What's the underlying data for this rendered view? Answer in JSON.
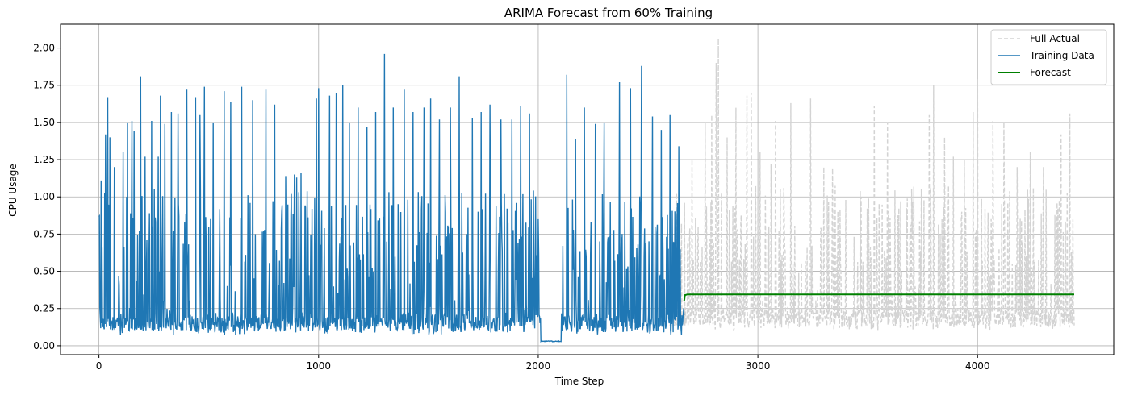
{
  "chart_data": {
    "type": "line",
    "title": "ARIMA Forecast from 60% Training",
    "xlabel": "Time Step",
    "ylabel": "CPU Usage",
    "xlim": [
      -175,
      4620
    ],
    "ylim": [
      -0.06,
      2.16
    ],
    "xticks": [
      0,
      1000,
      2000,
      3000,
      4000
    ],
    "yticks": [
      0.0,
      0.25,
      0.5,
      0.75,
      1.0,
      1.25,
      1.5,
      1.75,
      2.0
    ],
    "xtick_labels": [
      "0",
      "1000",
      "2000",
      "3000",
      "4000"
    ],
    "ytick_labels": [
      "0.00",
      "0.25",
      "0.50",
      "0.75",
      "1.00",
      "1.25",
      "1.50",
      "1.75",
      "2.00"
    ],
    "grid": true,
    "legend_position": "top-right",
    "series_style": {
      "full_actual": {
        "color": "#d3d3d3",
        "dash": "dashed"
      },
      "training": {
        "color": "#1f77b4",
        "dash": "solid"
      },
      "forecast": {
        "color": "#008000",
        "dash": "solid"
      }
    },
    "series": [
      {
        "name": "Full Actual",
        "key": "full_actual",
        "x_range": [
          0,
          4440
        ],
        "baseline": 0.12,
        "peaks": [
          [
            2700,
            1.25
          ],
          [
            2760,
            1.5
          ],
          [
            2790,
            1.55
          ],
          [
            2810,
            1.9
          ],
          [
            2820,
            2.06
          ],
          [
            2860,
            1.4
          ],
          [
            2900,
            1.6
          ],
          [
            2950,
            1.68
          ],
          [
            2970,
            1.7
          ],
          [
            3010,
            1.3
          ],
          [
            3060,
            1.22
          ],
          [
            3080,
            1.51
          ],
          [
            3150,
            1.63
          ],
          [
            3240,
            1.66
          ],
          [
            3300,
            1.2
          ],
          [
            3340,
            1.19
          ],
          [
            3400,
            0.98
          ],
          [
            3470,
            1.0
          ],
          [
            3530,
            1.61
          ],
          [
            3590,
            1.5
          ],
          [
            3650,
            0.97
          ],
          [
            3700,
            1.05
          ],
          [
            3780,
            1.55
          ],
          [
            3800,
            1.75
          ],
          [
            3850,
            1.4
          ],
          [
            3890,
            1.27
          ],
          [
            3940,
            1.25
          ],
          [
            3980,
            1.57
          ],
          [
            4000,
            1.79
          ],
          [
            4070,
            1.51
          ],
          [
            4120,
            1.5
          ],
          [
            4180,
            1.2
          ],
          [
            4240,
            1.3
          ],
          [
            4300,
            1.2
          ],
          [
            4380,
            1.42
          ],
          [
            4420,
            1.56
          ]
        ],
        "note_gap": [
          2010,
          2110
        ]
      },
      {
        "name": "Training Data",
        "key": "training",
        "x_range": [
          0,
          2664
        ],
        "baseline": 0.09,
        "gap_x": [
          2012,
          2105
        ],
        "gap_value": 0.03,
        "peaks": [
          [
            10,
            1.11
          ],
          [
            30,
            1.42
          ],
          [
            40,
            1.67
          ],
          [
            50,
            1.4
          ],
          [
            70,
            1.2
          ],
          [
            110,
            1.3
          ],
          [
            130,
            1.5
          ],
          [
            150,
            1.51
          ],
          [
            160,
            1.44
          ],
          [
            190,
            1.81
          ],
          [
            210,
            1.27
          ],
          [
            240,
            1.51
          ],
          [
            270,
            1.27
          ],
          [
            280,
            1.68
          ],
          [
            300,
            1.49
          ],
          [
            330,
            1.57
          ],
          [
            360,
            1.56
          ],
          [
            400,
            1.72
          ],
          [
            440,
            1.67
          ],
          [
            460,
            1.55
          ],
          [
            480,
            1.74
          ],
          [
            520,
            1.5
          ],
          [
            570,
            1.71
          ],
          [
            600,
            1.64
          ],
          [
            650,
            1.74
          ],
          [
            700,
            1.65
          ],
          [
            760,
            1.72
          ],
          [
            800,
            1.62
          ],
          [
            850,
            1.14
          ],
          [
            890,
            1.15
          ],
          [
            900,
            1.13
          ],
          [
            920,
            1.16
          ],
          [
            970,
            0.92
          ],
          [
            990,
            1.66
          ],
          [
            1000,
            1.73
          ],
          [
            1050,
            1.68
          ],
          [
            1080,
            1.7
          ],
          [
            1110,
            1.75
          ],
          [
            1140,
            1.5
          ],
          [
            1180,
            1.6
          ],
          [
            1220,
            1.47
          ],
          [
            1260,
            1.57
          ],
          [
            1300,
            1.96
          ],
          [
            1340,
            1.6
          ],
          [
            1390,
            1.72
          ],
          [
            1430,
            1.57
          ],
          [
            1480,
            1.6
          ],
          [
            1510,
            1.66
          ],
          [
            1550,
            1.52
          ],
          [
            1600,
            1.6
          ],
          [
            1640,
            1.81
          ],
          [
            1700,
            1.53
          ],
          [
            1740,
            1.57
          ],
          [
            1780,
            1.62
          ],
          [
            1830,
            1.52
          ],
          [
            1880,
            1.52
          ],
          [
            1920,
            1.61
          ],
          [
            1960,
            1.56
          ],
          [
            2000,
            0.85
          ],
          [
            2130,
            1.82
          ],
          [
            2170,
            1.39
          ],
          [
            2210,
            1.6
          ],
          [
            2260,
            1.49
          ],
          [
            2300,
            1.5
          ],
          [
            2370,
            1.77
          ],
          [
            2420,
            1.73
          ],
          [
            2470,
            1.88
          ],
          [
            2520,
            1.54
          ],
          [
            2560,
            1.45
          ],
          [
            2600,
            1.55
          ],
          [
            2640,
            1.34
          ]
        ]
      },
      {
        "name": "Forecast",
        "key": "forecast",
        "x": [
          2664,
          2668,
          2680,
          4440
        ],
        "y": [
          0.3,
          0.34,
          0.345,
          0.345
        ]
      }
    ]
  }
}
